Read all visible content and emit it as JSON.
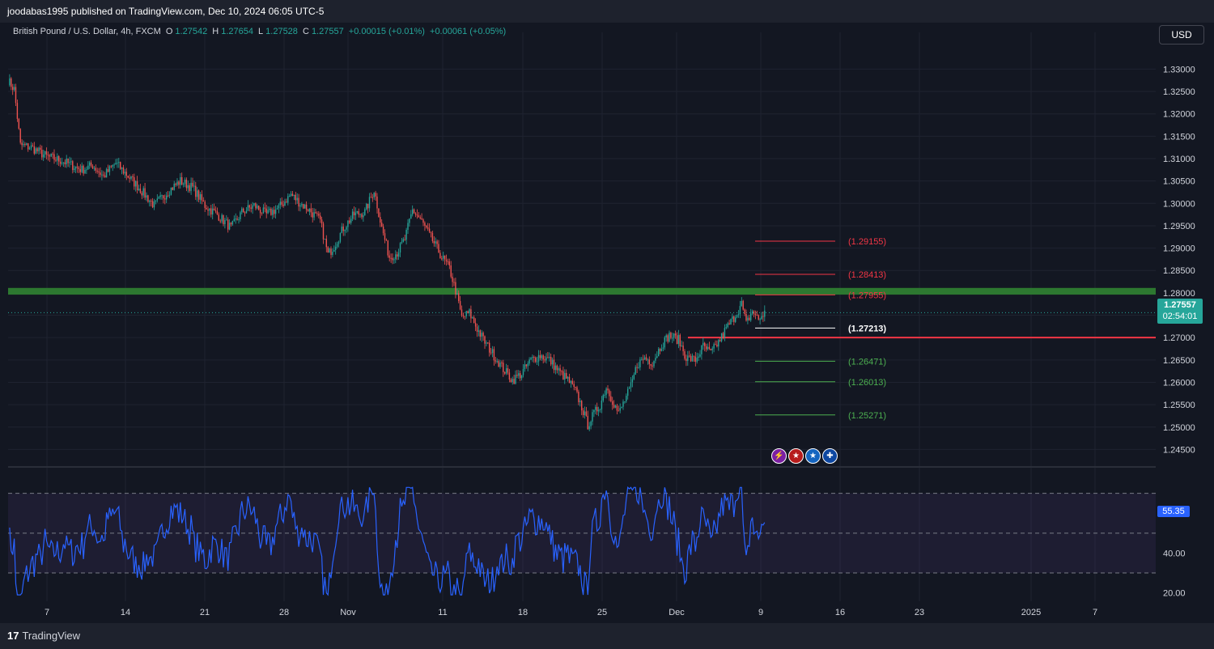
{
  "header": {
    "publisher_line": "joodabas1995 published on TradingView.com, Dec 10, 2024 06:05 UTC-5"
  },
  "legend": {
    "symbol": "British Pound / U.S. Dollar, 4h, FXCM",
    "open_label": "O",
    "open": "1.27542",
    "high_label": "H",
    "high": "1.27654",
    "low_label": "L",
    "low": "1.27528",
    "close_label": "C",
    "close": "1.27557",
    "change": "+0.00015 (+0.01%)",
    "change2": "+0.00061 (+0.05%)"
  },
  "currency_button": "USD",
  "last_price": {
    "price": "1.27557",
    "countdown": "02:54:01"
  },
  "rsi_value": "55.35",
  "footer": {
    "logo_mark": "17",
    "logo_text": "TradingView"
  },
  "event_icons": [
    "lightning-icon",
    "us-flag-icon",
    "us-flag-icon",
    "uk-flag-icon"
  ],
  "colors": {
    "background": "#131722",
    "up": "#26a69a",
    "down": "#ef5350",
    "rsi_line": "#2962ff",
    "rsi_band": "#7e57c2",
    "support_zone": "#2e7d32",
    "resistance_line": "#f23645",
    "level_red": "#f23645",
    "level_green": "#4caf50",
    "level_white": "#ffffff"
  },
  "chart_data": [
    {
      "type": "candlestick",
      "ylim": [
        1.242,
        1.3355
      ],
      "y_ticks": [
        "1.33000",
        "1.32500",
        "1.32000",
        "1.31500",
        "1.31000",
        "1.30500",
        "1.30000",
        "1.29500",
        "1.29000",
        "1.28500",
        "1.28000",
        "1.27500",
        "1.27000",
        "1.26500",
        "1.26000",
        "1.25500",
        "1.25000",
        "1.24500"
      ],
      "y_tick_values": [
        1.33,
        1.325,
        1.32,
        1.315,
        1.31,
        1.305,
        1.3,
        1.295,
        1.29,
        1.285,
        1.28,
        1.275,
        1.27,
        1.265,
        1.26,
        1.255,
        1.25,
        1.245
      ],
      "x_ticks": [
        "7",
        "14",
        "21",
        "28",
        "Nov",
        "11",
        "18",
        "25",
        "Dec",
        "9",
        "16",
        "23",
        "2025",
        "7"
      ],
      "path_points": [
        [
          0,
          1.3275
        ],
        [
          4,
          1.3255
        ],
        [
          8,
          1.313
        ],
        [
          15,
          1.3125
        ],
        [
          25,
          1.3105
        ],
        [
          35,
          1.3095
        ],
        [
          48,
          1.3075
        ],
        [
          55,
          1.3085
        ],
        [
          62,
          1.306
        ],
        [
          70,
          1.309
        ],
        [
          77,
          1.3065
        ],
        [
          85,
          1.3035
        ],
        [
          95,
          1.2995
        ],
        [
          105,
          1.303
        ],
        [
          112,
          1.305
        ],
        [
          120,
          1.3035
        ],
        [
          128,
          1.2995
        ],
        [
          136,
          1.2975
        ],
        [
          145,
          1.2945
        ],
        [
          152,
          1.298
        ],
        [
          160,
          1.2995
        ],
        [
          168,
          1.2975
        ],
        [
          176,
          1.299
        ],
        [
          184,
          1.302
        ],
        [
          190,
          1.3
        ],
        [
          196,
          1.2985
        ],
        [
          203,
          1.296
        ],
        [
          208,
          1.2885
        ],
        [
          212,
          1.2905
        ],
        [
          218,
          1.2945
        ],
        [
          225,
          1.2975
        ],
        [
          232,
          1.298
        ],
        [
          238,
          1.303
        ],
        [
          243,
          1.2945
        ],
        [
          248,
          1.288
        ],
        [
          253,
          1.289
        ],
        [
          258,
          1.292
        ],
        [
          263,
          1.2985
        ],
        [
          268,
          1.2965
        ],
        [
          273,
          1.2935
        ],
        [
          278,
          1.2905
        ],
        [
          282,
          1.288
        ],
        [
          287,
          1.2855
        ],
        [
          291,
          1.2805
        ],
        [
          295,
          1.2745
        ],
        [
          300,
          1.2755
        ],
        [
          305,
          1.272
        ],
        [
          310,
          1.269
        ],
        [
          316,
          1.266
        ],
        [
          322,
          1.263
        ],
        [
          328,
          1.2605
        ],
        [
          334,
          1.262
        ],
        [
          340,
          1.265
        ],
        [
          346,
          1.266
        ],
        [
          352,
          1.265
        ],
        [
          358,
          1.2625
        ],
        [
          364,
          1.2605
        ],
        [
          369,
          1.258
        ],
        [
          373,
          1.2545
        ],
        [
          377,
          1.2505
        ],
        [
          381,
          1.253
        ],
        [
          385,
          1.255
        ],
        [
          389,
          1.259
        ],
        [
          393,
          1.256
        ],
        [
          397,
          1.253
        ],
        [
          401,
          1.256
        ],
        [
          405,
          1.259
        ],
        [
          409,
          1.264
        ],
        [
          414,
          1.2655
        ],
        [
          419,
          1.2645
        ],
        [
          425,
          1.2685
        ],
        [
          430,
          1.2705
        ],
        [
          436,
          1.2695
        ],
        [
          441,
          1.2655
        ],
        [
          447,
          1.265
        ],
        [
          452,
          1.268
        ],
        [
          457,
          1.2665
        ],
        [
          462,
          1.269
        ],
        [
          467,
          1.272
        ],
        [
          472,
          1.2745
        ],
        [
          477,
          1.2775
        ],
        [
          480,
          1.273
        ],
        [
          484,
          1.276
        ],
        [
          488,
          1.274
        ],
        [
          492,
          1.2756
        ]
      ],
      "total_bars": 492,
      "support_zone": {
        "from": 1.2796,
        "to": 1.2811
      },
      "horizontal_line": {
        "price": 1.27
      },
      "levels": [
        {
          "label": "(1.29155)",
          "price": 1.29155,
          "color": "red"
        },
        {
          "label": "(1.28413)",
          "price": 1.28413,
          "color": "red"
        },
        {
          "label": "(1.27955)",
          "price": 1.27955,
          "color": "red"
        },
        {
          "label": "(1.27213)",
          "price": 1.27213,
          "color": "white"
        },
        {
          "label": "(1.26471)",
          "price": 1.26471,
          "color": "green"
        },
        {
          "label": "(1.26013)",
          "price": 1.26013,
          "color": "green"
        },
        {
          "label": "(1.25271)",
          "price": 1.25271,
          "color": "green"
        }
      ],
      "last_price": 1.27557
    },
    {
      "type": "line",
      "series": [
        {
          "name": "RSI"
        }
      ],
      "ylim": [
        17,
        78
      ],
      "y_ticks": [
        "60.00",
        "40.00",
        "20.00"
      ],
      "y_tick_values": [
        60,
        40,
        20
      ],
      "bands": [
        70,
        50,
        30
      ],
      "last_value": 55.35
    }
  ]
}
